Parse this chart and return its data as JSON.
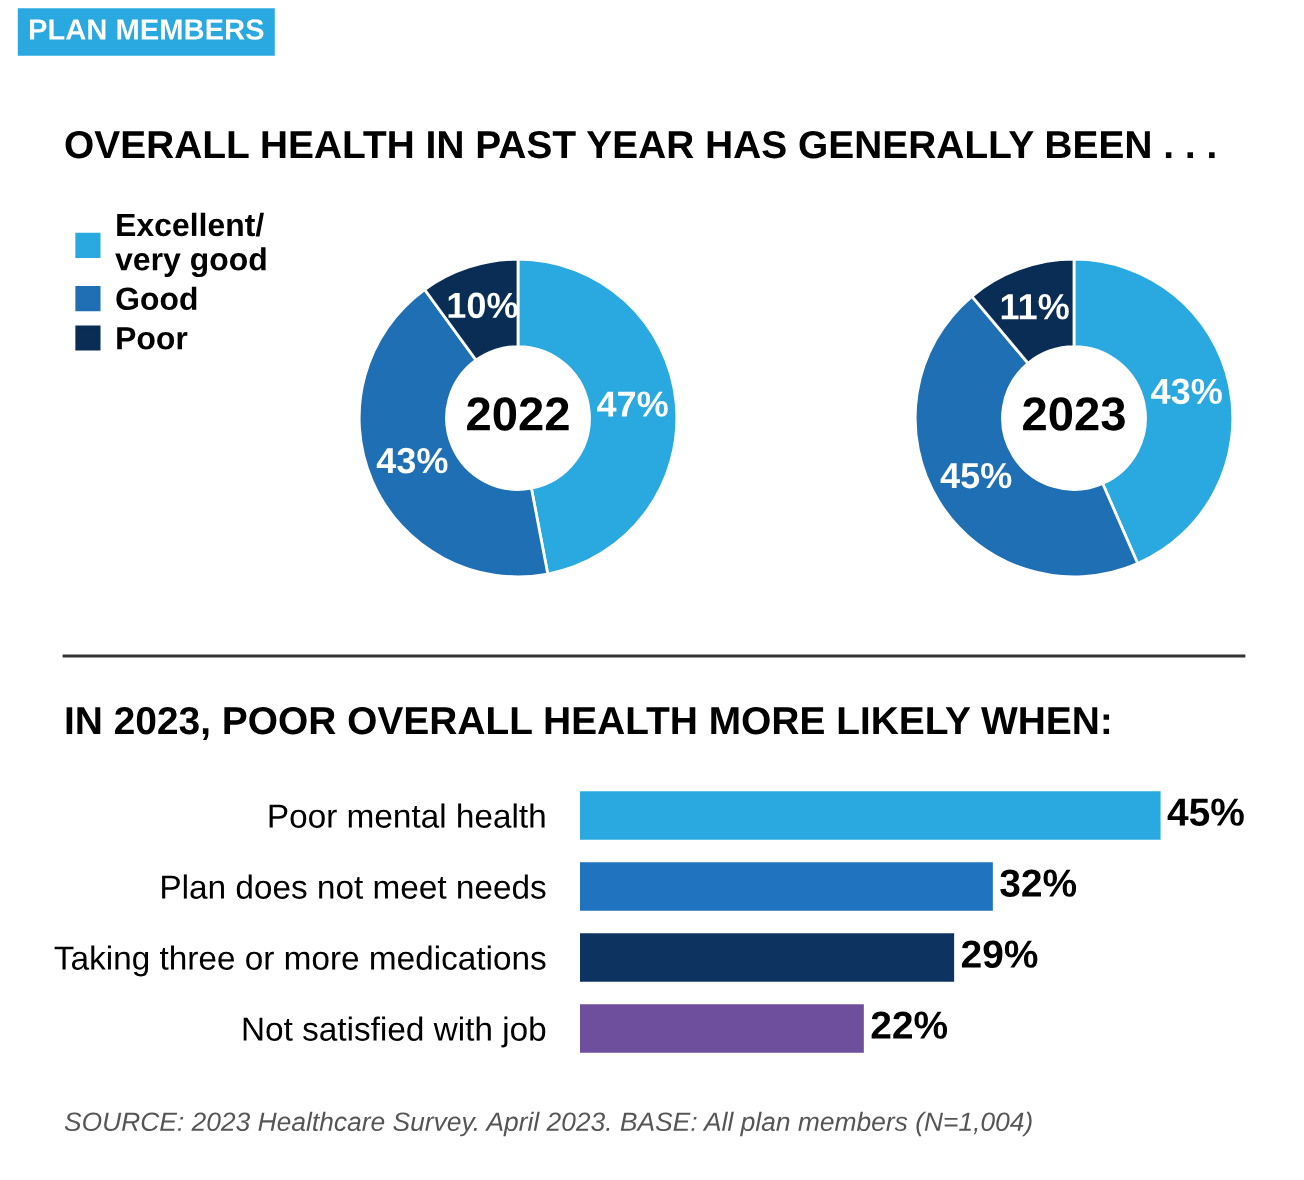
{
  "chart_data": [
    {
      "type": "donut",
      "title": "OVERALL HEALTH IN PAST YEAR HAS GENERALLY BEEN . . .",
      "subtitle": "PLAN MEMBERS",
      "annotations": [
        "2022"
      ],
      "categories": [
        "Excellent/\nvery good",
        "Good",
        "Poor"
      ],
      "values": [
        47,
        43,
        10
      ],
      "value_labels": [
        "47%",
        "43%",
        "10%"
      ],
      "colors": [
        "#29a9e0",
        "#1f6fb5",
        "#0a2d55"
      ],
      "legend": "left"
    },
    {
      "type": "donut",
      "annotations": [
        "2023"
      ],
      "categories": [
        null,
        null,
        null
      ],
      "values": [
        43,
        45,
        11
      ],
      "value_labels": [
        "43%",
        "45%",
        "11%"
      ],
      "colors": [
        "#29a9e0",
        "#1f6fb5",
        "#0a2d55"
      ]
    },
    {
      "type": "bar",
      "orientation": "horizontal",
      "title": "IN 2023, POOR OVERALL HEALTH MORE LIKELY WHEN:",
      "categories": [
        "Poor mental health",
        "Plan does not meet needs",
        "Taking three or more medications",
        "Not satisfied with job"
      ],
      "values": [
        45,
        32,
        29,
        22
      ],
      "value_labels": [
        "45%",
        "32%",
        "29%",
        "22%"
      ],
      "colors": [
        "#29a9e0",
        "#1f73bf",
        "#0d3461",
        "#6e4f9e"
      ],
      "annotations": [
        "SOURCE: 2023 Healthcare Survey. April 2023. BASE: All plan members (N=1,004)"
      ]
    }
  ]
}
